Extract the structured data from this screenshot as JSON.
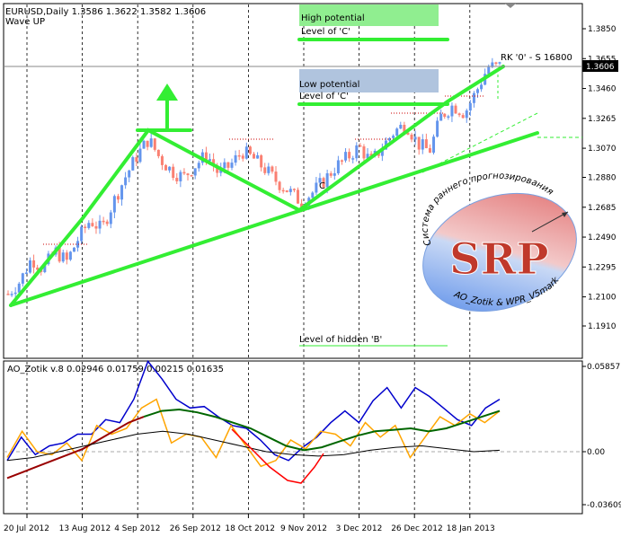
{
  "header": {
    "symbol_line": "EURUSD,Daily  1.3586 1.3622 1.3582 1.3606",
    "indicator_line": "Wave UP"
  },
  "annotations": {
    "high_potential_1": "High potential",
    "high_potential_2": "Level of 'C'",
    "low_potential_1": "Low potential",
    "low_potential_2": "Level of 'C'",
    "hidden_b": "Level of hidden 'B'",
    "rk_label": "RK '0' - S 16800",
    "small_c": "C",
    "current_price": "1.3606"
  },
  "logo": {
    "top_text": "Система раннего прогнозирования",
    "letters": "SRP",
    "bottom_text": "AO_Zotik & WPR_V5mark"
  },
  "oscillator": {
    "title": "AO_Zotik v.8 0.02946 0.01759 0.00215 0.01635",
    "ticks": [
      "0.05857",
      "0.00",
      "-0.03609"
    ]
  },
  "colors": {
    "bull": "#6495ED",
    "bear": "#FA8072",
    "trend": "#33EE33",
    "high_box": "#90EE90",
    "low_box": "#B0C4DE"
  },
  "chart_data": [
    {
      "type": "candlestick",
      "y_ticks": [
        "1.3850",
        "1.3655",
        "1.3460",
        "1.3265",
        "1.3070",
        "1.2880",
        "1.2685",
        "1.2490",
        "1.2295",
        "1.2100",
        "1.1910"
      ],
      "x_ticks": [
        "20 Jul 2012",
        "13 Aug 2012",
        "4 Sep 2012",
        "26 Sep 2012",
        "18 Oct 2012",
        "9 Nov 2012",
        "3 Dec 2012",
        "26 Dec 2012",
        "18 Jan 2013"
      ],
      "ylim": [
        1.175,
        1.4
      ],
      "close_path": [
        1.212,
        1.22,
        1.235,
        1.228,
        1.24,
        1.233,
        1.248,
        1.26,
        1.254,
        1.272,
        1.288,
        1.302,
        1.313,
        1.3,
        1.292,
        1.288,
        1.296,
        1.303,
        1.29,
        1.296,
        1.305,
        1.3,
        1.293,
        1.285,
        1.279,
        1.272,
        1.278,
        1.286,
        1.295,
        1.301,
        1.308,
        1.298,
        1.308,
        1.318,
        1.323,
        1.31,
        1.305,
        1.328,
        1.335,
        1.33,
        1.344,
        1.36,
        1.3606
      ]
    },
    {
      "type": "line",
      "ylim": [
        -0.045,
        0.065
      ],
      "series": [
        {
          "color": "#0000CC",
          "values": [
            -0.006,
            0.01,
            -0.002,
            0.004,
            0.006,
            0.012,
            0.012,
            0.022,
            0.02,
            0.036,
            0.062,
            0.05,
            0.036,
            0.03,
            0.031,
            0.024,
            0.018,
            0.016,
            0.008,
            -0.002,
            -0.006,
            0.003,
            0.01,
            0.02,
            0.028,
            0.02,
            0.035,
            0.044,
            0.03,
            0.044,
            0.038,
            0.03,
            0.022,
            0.018,
            0.03,
            0.036
          ]
        },
        {
          "color": "#FFA500",
          "values": [
            -0.004,
            0.014,
            0.0,
            -0.002,
            0.006,
            -0.006,
            0.018,
            0.012,
            0.016,
            0.03,
            0.036,
            0.006,
            0.012,
            0.01,
            -0.004,
            0.018,
            0.004,
            -0.01,
            -0.006,
            0.008,
            0.002,
            0.014,
            0.012,
            0.004,
            0.02,
            0.01,
            0.018,
            -0.004,
            0.01,
            0.024,
            0.018,
            0.026,
            0.02,
            0.028
          ]
        },
        {
          "color": "#990000",
          "values": [
            -0.018,
            -0.014,
            -0.01,
            -0.006,
            -0.002,
            0.002,
            0.008,
            0.014,
            0.02,
            0.024
          ]
        },
        {
          "color": "#006600",
          "values": [
            0.024,
            0.028,
            0.029,
            0.027,
            0.024,
            0.02,
            0.016,
            0.01,
            0.004,
            0.001,
            0.003,
            0.007,
            0.011,
            0.014,
            0.015,
            0.016,
            0.014,
            0.016,
            0.02,
            0.024,
            0.028
          ]
        },
        {
          "color": "#000000",
          "values": [
            -0.006,
            -0.004,
            0.0,
            0.004,
            0.008,
            0.012,
            0.014,
            0.012,
            0.008,
            0.004,
            0.0,
            -0.002,
            -0.003,
            -0.002,
            0.001,
            0.003,
            0.004,
            0.002,
            0.0,
            0.001
          ]
        }
      ]
    }
  ]
}
